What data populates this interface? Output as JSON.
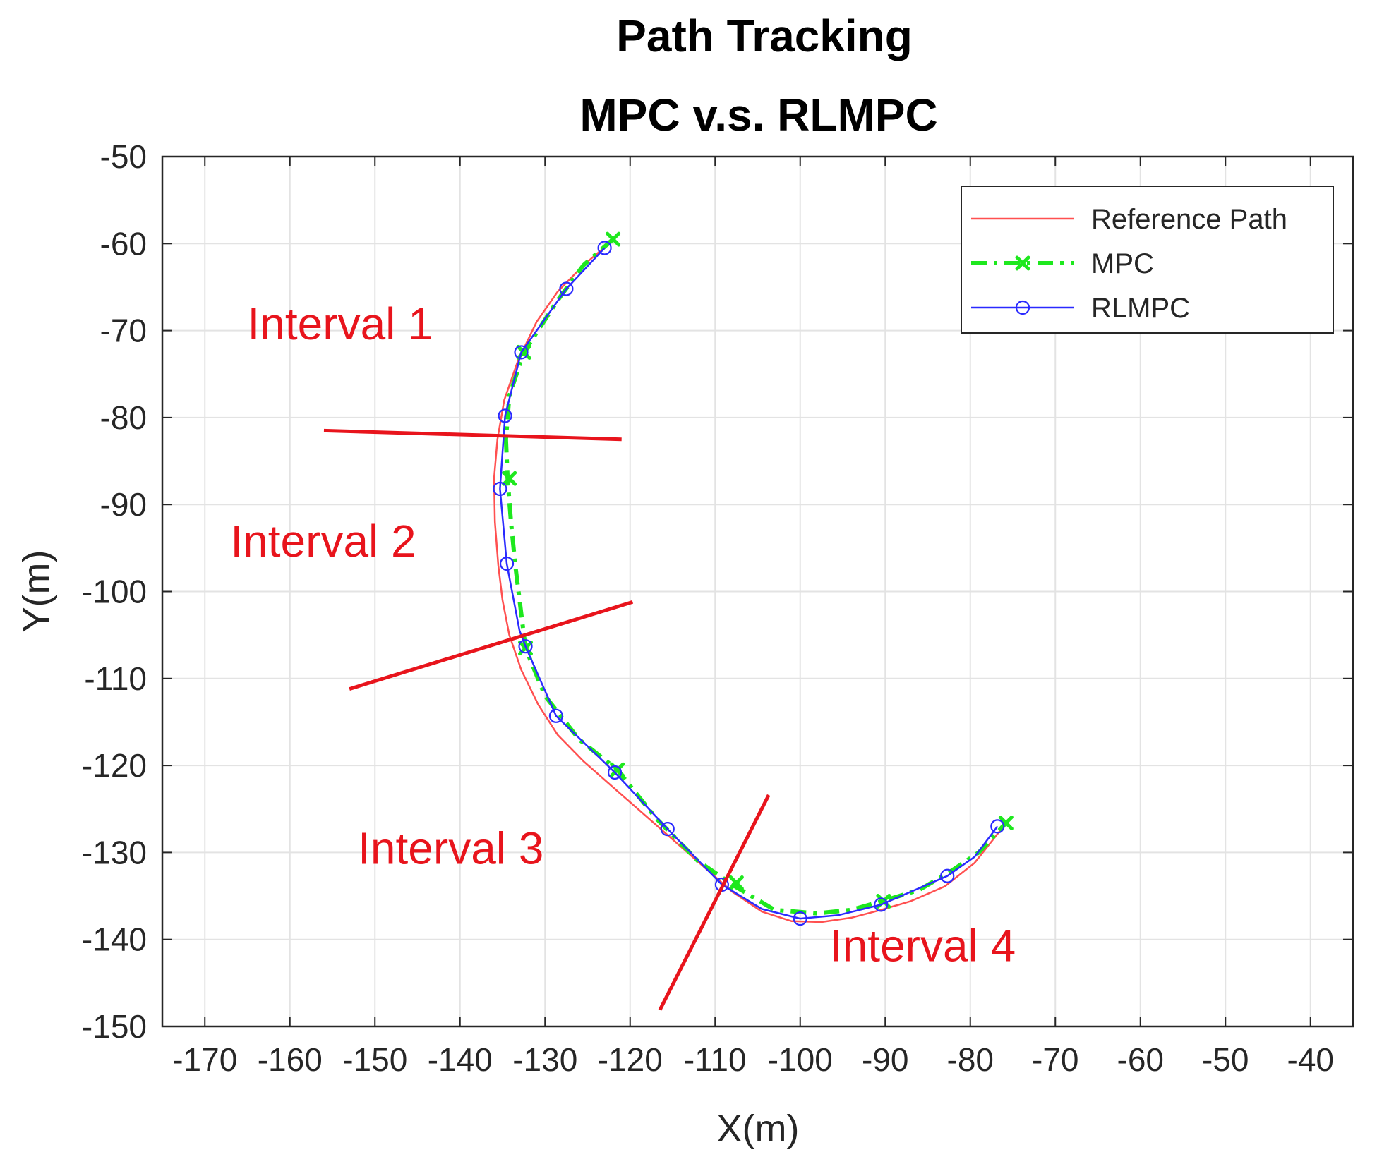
{
  "chart_data": {
    "type": "line",
    "title": [
      "Path Tracking",
      "MPC v.s. RLMPC"
    ],
    "xlabel": "X(m)",
    "ylabel": "Y(m)",
    "xlim": [
      -175,
      -35
    ],
    "ylim": [
      -150,
      -50
    ],
    "xticks": [
      -170,
      -160,
      -150,
      -140,
      -130,
      -120,
      -110,
      -100,
      -90,
      -80,
      -70,
      -60,
      -50,
      -40
    ],
    "yticks": [
      -50,
      -60,
      -70,
      -80,
      -90,
      -100,
      -110,
      -120,
      -130,
      -140,
      -150
    ],
    "grid": true,
    "legend_position": "top-right",
    "series": [
      {
        "name": "Reference Path",
        "color": "#ff5050",
        "style": "solid",
        "marker": "none",
        "x": [
          -122.5,
          -125.5,
          -128.5,
          -131,
          -133.2,
          -134.8,
          -135.6,
          -136,
          -135.9,
          -135.5,
          -135,
          -134.2,
          -132.8,
          -130.8,
          -128.5,
          -125.5,
          -122,
          -118.5,
          -115,
          -111.5,
          -108,
          -104.5,
          -101,
          -97.5,
          -94,
          -90.5,
          -87,
          -83,
          -79.5,
          -76.5
        ],
        "y": [
          -60,
          -62.5,
          -65.5,
          -69,
          -73.5,
          -78,
          -82.5,
          -87,
          -92,
          -97,
          -101,
          -105,
          -109,
          -113,
          -116.5,
          -119.5,
          -122.5,
          -125.5,
          -128.5,
          -131.5,
          -134.5,
          -136.8,
          -137.9,
          -138,
          -137.5,
          -136.6,
          -135.6,
          -133.9,
          -131.2,
          -127.5
        ]
      },
      {
        "name": "MPC",
        "color": "#1ee81e",
        "style": "dash-dot",
        "marker": "x",
        "x": [
          -122,
          -125.5,
          -128.5,
          -132.5,
          -134.2,
          -134.6,
          -134.4,
          -134,
          -133.5,
          -132.3,
          -130,
          -126,
          -121.5,
          -117,
          -112,
          -107.5,
          -103,
          -98,
          -94,
          -90,
          -86,
          -82.5,
          -79,
          -75.8
        ],
        "y": [
          -59.5,
          -62.5,
          -66.5,
          -72.5,
          -77.5,
          -82.5,
          -87,
          -92,
          -97,
          -106.5,
          -112,
          -117,
          -120.5,
          -126,
          -131,
          -134,
          -136.6,
          -137,
          -136.6,
          -135.5,
          -134.3,
          -132.3,
          -130,
          -126.6
        ],
        "markers_x": [
          -122,
          -132.5,
          -134.2,
          -132.3,
          -121.5,
          -107.5,
          -90.2,
          -75.8
        ],
        "markers_y": [
          -59.5,
          -72.5,
          -87,
          -106.5,
          -120.5,
          -133.5,
          -135.6,
          -126.6
        ]
      },
      {
        "name": "RLMPC",
        "color": "#2a2aff",
        "style": "solid",
        "marker": "o",
        "x": [
          -123,
          -127.5,
          -132.8,
          -134.7,
          -135.3,
          -134.5,
          -133,
          -132.3,
          -128.7,
          -121.8,
          -115.6,
          -109.2,
          -104.5,
          -100,
          -95.5,
          -90.5,
          -82.7,
          -79.5,
          -76.8
        ],
        "y": [
          -60.5,
          -65.2,
          -72.5,
          -79.8,
          -88.2,
          -96.8,
          -104.5,
          -106.3,
          -114.3,
          -120.8,
          -127.3,
          -133.7,
          -136.5,
          -137.6,
          -137.2,
          -136,
          -132.7,
          -130.5,
          -127
        ],
        "markers_x": [
          -123,
          -127.5,
          -132.8,
          -134.7,
          -135.3,
          -134.5,
          -132.3,
          -128.7,
          -121.8,
          -115.6,
          -109.2,
          -100,
          -90.5,
          -82.7,
          -76.8
        ],
        "markers_y": [
          -60.5,
          -65.2,
          -72.5,
          -79.8,
          -88.2,
          -96.8,
          -106.3,
          -114.3,
          -120.8,
          -127.3,
          -133.7,
          -137.6,
          -136,
          -132.7,
          -127
        ]
      }
    ],
    "annotations": [
      {
        "text": "Interval 1",
        "x": -165,
        "y": -71,
        "color": "#e8141c"
      },
      {
        "text": "Interval 2",
        "x": -167,
        "y": -96,
        "color": "#e8141c"
      },
      {
        "text": "Interval 3",
        "x": -152,
        "y": -131.3,
        "color": "#e8141c"
      },
      {
        "text": "Interval 4",
        "x": -96.5,
        "y": -142.5,
        "color": "#e8141c"
      }
    ],
    "divider_lines": [
      {
        "x1": -156,
        "y1": -81.5,
        "x2": -121,
        "y2": -82.5,
        "color": "#e8141c"
      },
      {
        "x1": -153,
        "y1": -111.2,
        "x2": -119.7,
        "y2": -101.2,
        "color": "#e8141c"
      },
      {
        "x1": -116.5,
        "y1": -148.1,
        "x2": -103.7,
        "y2": -123.4,
        "color": "#e8141c"
      }
    ]
  }
}
